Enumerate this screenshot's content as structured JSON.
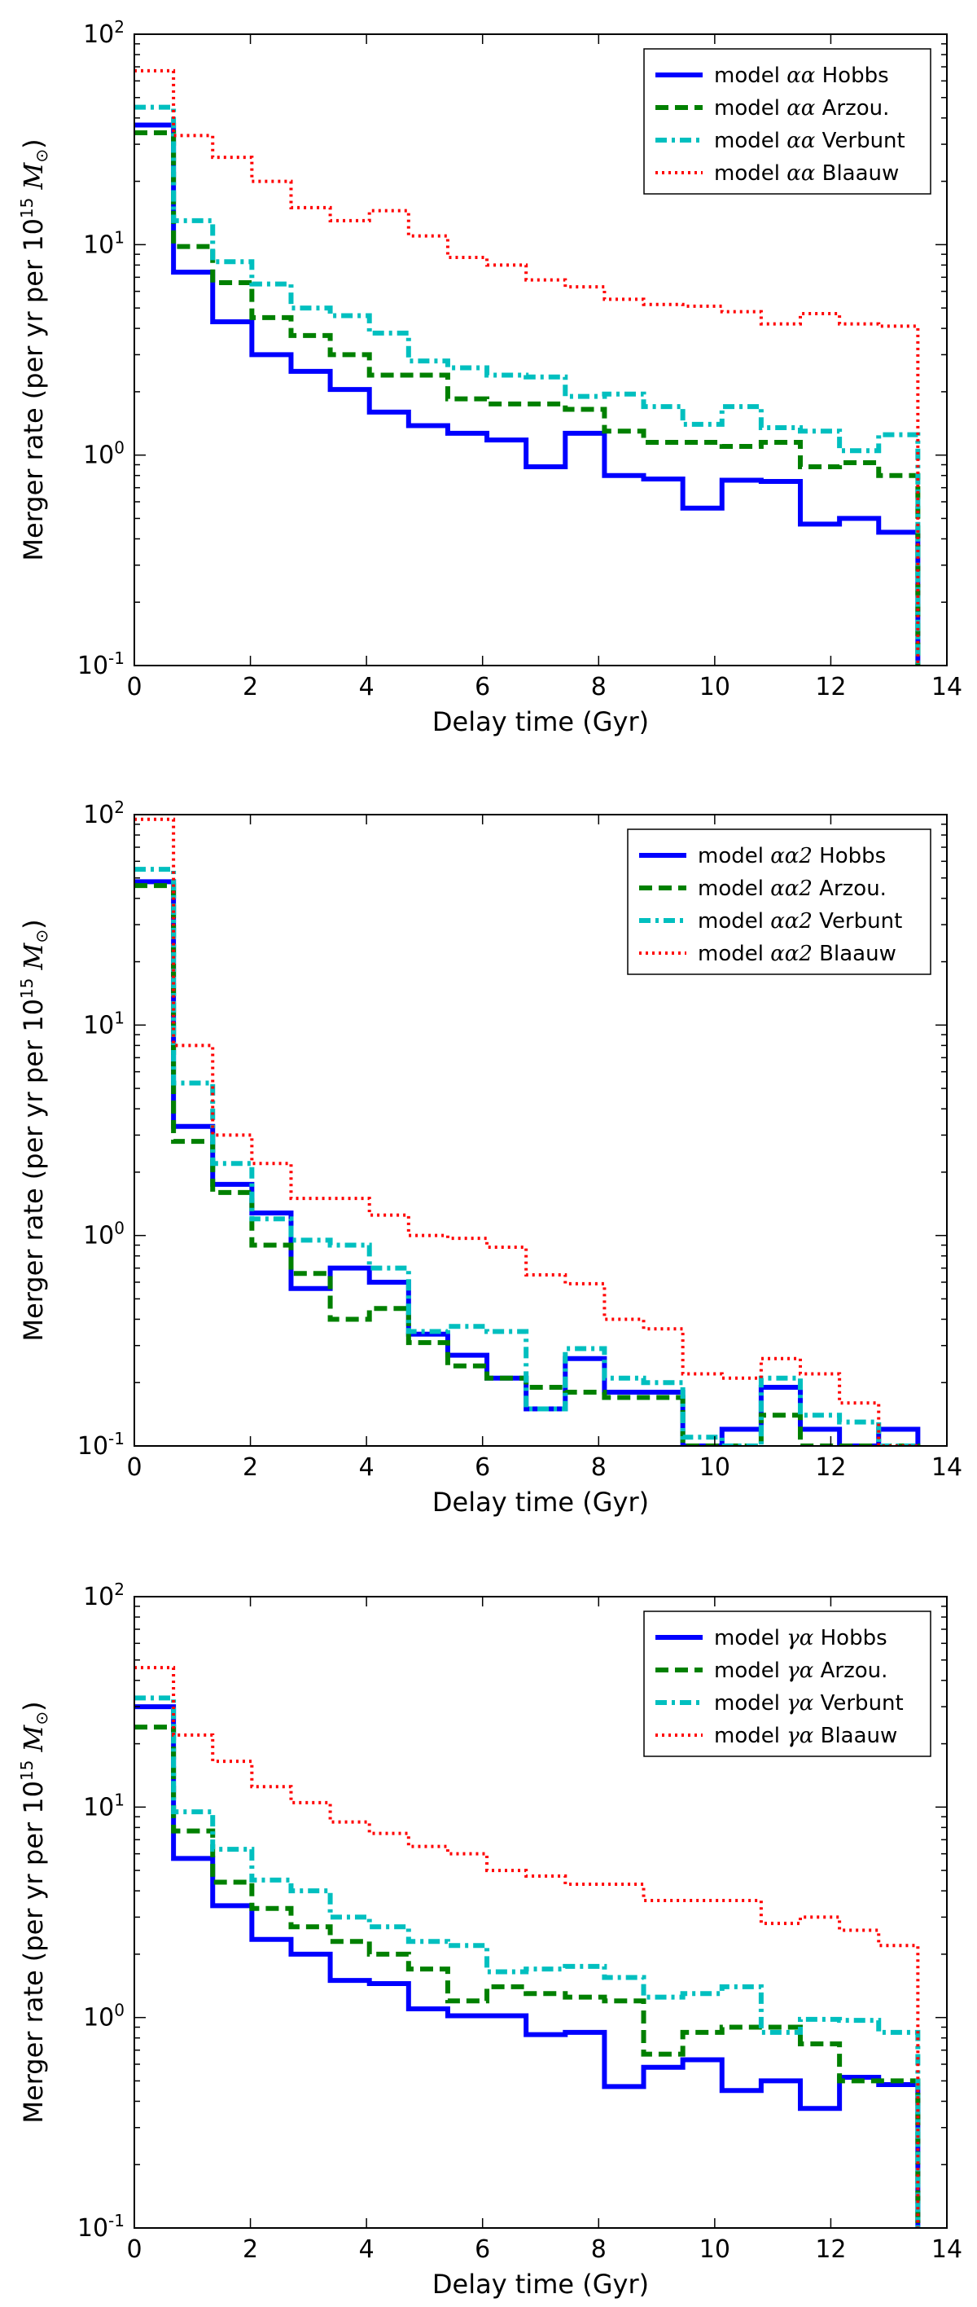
{
  "chart_data": [
    {
      "type": "line",
      "title": "",
      "xlabel": "Delay time (Gyr)",
      "ylabel_prefix": "Merger rate (per yr per 10",
      "ylabel_exp": "15",
      "ylabel_suffix": " M",
      "ylabel_sub": "⊙",
      "ylabel_close": ")",
      "xlim": [
        0,
        14
      ],
      "ylim": [
        0.1,
        100
      ],
      "yscale": "log",
      "xticks": [
        "0",
        "2",
        "4",
        "6",
        "8",
        "10",
        "12",
        "14"
      ],
      "yticks": [
        {
          "base": "10",
          "exp": "-1"
        },
        {
          "base": "10",
          "exp": "0"
        },
        {
          "base": "10",
          "exp": "1"
        },
        {
          "base": "10",
          "exp": "2"
        }
      ],
      "legend_position": "top-right",
      "bin_edges": [
        0,
        0.675,
        1.35,
        2.025,
        2.7,
        3.375,
        4.05,
        4.725,
        5.4,
        6.075,
        6.75,
        7.425,
        8.1,
        8.775,
        9.45,
        10.125,
        10.8,
        11.475,
        12.15,
        12.825,
        13.5
      ],
      "series": [
        {
          "legend_prefix": "model ",
          "greek": "αα",
          "legend_suffix": " Hobbs",
          "color": "#0000ff",
          "style": "solid",
          "values": [
            37,
            7.4,
            4.3,
            3.0,
            2.5,
            2.05,
            1.6,
            1.38,
            1.27,
            1.18,
            0.88,
            1.27,
            0.8,
            0.77,
            0.56,
            0.76,
            0.75,
            0.47,
            0.5,
            0.43
          ]
        },
        {
          "legend_prefix": "model ",
          "greek": "αα",
          "legend_suffix": " Arzou.",
          "color": "#008000",
          "style": "dashed",
          "values": [
            34,
            9.8,
            6.6,
            4.5,
            3.7,
            3.0,
            2.4,
            2.4,
            1.85,
            1.75,
            1.75,
            1.65,
            1.3,
            1.15,
            1.15,
            1.1,
            1.15,
            0.88,
            0.92,
            0.8
          ]
        },
        {
          "legend_prefix": "model ",
          "greek": "αα",
          "legend_suffix": " Verbunt",
          "color": "#00bfbf",
          "style": "dashdot",
          "values": [
            45,
            13,
            8.3,
            6.5,
            5.0,
            4.6,
            3.8,
            2.8,
            2.6,
            2.4,
            2.35,
            1.9,
            1.95,
            1.7,
            1.4,
            1.7,
            1.35,
            1.3,
            1.05,
            1.25
          ]
        },
        {
          "legend_prefix": "model ",
          "greek": "αα",
          "legend_suffix": " Blaauw",
          "color": "#ff0000",
          "style": "dotted",
          "values": [
            67,
            33,
            26,
            20,
            15,
            13,
            14.5,
            11,
            8.7,
            8.0,
            6.8,
            6.3,
            5.5,
            5.2,
            5.1,
            4.8,
            4.2,
            4.7,
            4.2,
            4.1
          ]
        }
      ]
    },
    {
      "type": "line",
      "title": "",
      "xlabel": "Delay time (Gyr)",
      "ylabel_prefix": "Merger rate (per yr per 10",
      "ylabel_exp": "15",
      "ylabel_suffix": " M",
      "ylabel_sub": "⊙",
      "ylabel_close": ")",
      "xlim": [
        0,
        14
      ],
      "ylim": [
        0.1,
        100
      ],
      "yscale": "log",
      "xticks": [
        "0",
        "2",
        "4",
        "6",
        "8",
        "10",
        "12",
        "14"
      ],
      "yticks": [
        {
          "base": "10",
          "exp": "-1"
        },
        {
          "base": "10",
          "exp": "0"
        },
        {
          "base": "10",
          "exp": "1"
        },
        {
          "base": "10",
          "exp": "2"
        }
      ],
      "legend_position": "top-right",
      "bin_edges": [
        0,
        0.675,
        1.35,
        2.025,
        2.7,
        3.375,
        4.05,
        4.725,
        5.4,
        6.075,
        6.75,
        7.425,
        8.1,
        8.775,
        9.45,
        10.125,
        10.8,
        11.475,
        12.15,
        12.825,
        13.5
      ],
      "series": [
        {
          "legend_prefix": "model ",
          "greek": "αα2",
          "legend_suffix": " Hobbs",
          "color": "#0000ff",
          "style": "solid",
          "values": [
            48,
            3.3,
            1.75,
            1.28,
            0.56,
            0.7,
            0.6,
            0.34,
            0.27,
            0.21,
            0.15,
            0.26,
            0.18,
            0.18,
            0.1,
            0.12,
            0.19,
            0.12,
            0.1,
            0.12
          ]
        },
        {
          "legend_prefix": "model ",
          "greek": "αα2",
          "legend_suffix": " Arzou.",
          "color": "#008000",
          "style": "dashed",
          "values": [
            46,
            2.8,
            1.6,
            0.9,
            0.66,
            0.4,
            0.45,
            0.31,
            0.24,
            0.21,
            0.19,
            0.18,
            0.17,
            0.17,
            0.1,
            0.1,
            0.14,
            0.1,
            0.1,
            0.1
          ]
        },
        {
          "legend_prefix": "model ",
          "greek": "αα2",
          "legend_suffix": " Verbunt",
          "color": "#00bfbf",
          "style": "dashdot",
          "values": [
            55,
            5.3,
            2.2,
            1.2,
            0.95,
            0.9,
            0.7,
            0.35,
            0.37,
            0.35,
            0.15,
            0.29,
            0.21,
            0.2,
            0.11,
            0.1,
            0.21,
            0.14,
            0.13,
            0.1
          ]
        },
        {
          "legend_prefix": "model ",
          "greek": "αα2",
          "legend_suffix": " Blaauw",
          "color": "#ff0000",
          "style": "dotted",
          "values": [
            95,
            8.0,
            3.0,
            2.2,
            1.5,
            1.5,
            1.25,
            1.0,
            0.97,
            0.88,
            0.65,
            0.59,
            0.4,
            0.36,
            0.22,
            0.21,
            0.26,
            0.22,
            0.16,
            0.1
          ]
        }
      ]
    },
    {
      "type": "line",
      "title": "",
      "xlabel": "Delay time (Gyr)",
      "ylabel_prefix": "Merger rate (per yr per 10",
      "ylabel_exp": "15",
      "ylabel_suffix": " M",
      "ylabel_sub": "⊙",
      "ylabel_close": ")",
      "xlim": [
        0,
        14
      ],
      "ylim": [
        0.1,
        100
      ],
      "yscale": "log",
      "xticks": [
        "0",
        "2",
        "4",
        "6",
        "8",
        "10",
        "12",
        "14"
      ],
      "yticks": [
        {
          "base": "10",
          "exp": "-1"
        },
        {
          "base": "10",
          "exp": "0"
        },
        {
          "base": "10",
          "exp": "1"
        },
        {
          "base": "10",
          "exp": "2"
        }
      ],
      "legend_position": "top-right",
      "bin_edges": [
        0,
        0.675,
        1.35,
        2.025,
        2.7,
        3.375,
        4.05,
        4.725,
        5.4,
        6.075,
        6.75,
        7.425,
        8.1,
        8.775,
        9.45,
        10.125,
        10.8,
        11.475,
        12.15,
        12.825,
        13.5
      ],
      "series": [
        {
          "legend_prefix": "model ",
          "greek": "γα",
          "legend_suffix": " Hobbs",
          "color": "#0000ff",
          "style": "solid",
          "values": [
            30,
            5.7,
            3.4,
            2.35,
            2.0,
            1.5,
            1.45,
            1.1,
            1.02,
            1.02,
            0.83,
            0.85,
            0.47,
            0.58,
            0.63,
            0.45,
            0.5,
            0.37,
            0.52,
            0.48
          ]
        },
        {
          "legend_prefix": "model ",
          "greek": "γα",
          "legend_suffix": " Arzou.",
          "color": "#008000",
          "style": "dashed",
          "values": [
            24,
            7.7,
            4.4,
            3.3,
            2.7,
            2.3,
            2.0,
            1.7,
            1.2,
            1.4,
            1.3,
            1.25,
            1.2,
            0.67,
            0.85,
            0.9,
            0.9,
            0.75,
            0.5,
            0.5
          ]
        },
        {
          "legend_prefix": "model ",
          "greek": "γα",
          "legend_suffix": " Verbunt",
          "color": "#00bfbf",
          "style": "dashdot",
          "values": [
            33,
            9.5,
            6.3,
            4.5,
            4.0,
            3.0,
            2.7,
            2.3,
            2.2,
            1.65,
            1.7,
            1.75,
            1.55,
            1.25,
            1.3,
            1.4,
            0.85,
            0.98,
            0.97,
            0.85
          ]
        },
        {
          "legend_prefix": "model ",
          "greek": "γα",
          "legend_suffix": " Blaauw",
          "color": "#ff0000",
          "style": "dotted",
          "values": [
            46,
            22,
            16.5,
            12.5,
            10.5,
            8.5,
            7.5,
            6.5,
            6.0,
            5.0,
            4.7,
            4.3,
            4.3,
            3.6,
            3.6,
            3.6,
            2.8,
            3.0,
            2.6,
            2.2
          ]
        }
      ]
    }
  ]
}
